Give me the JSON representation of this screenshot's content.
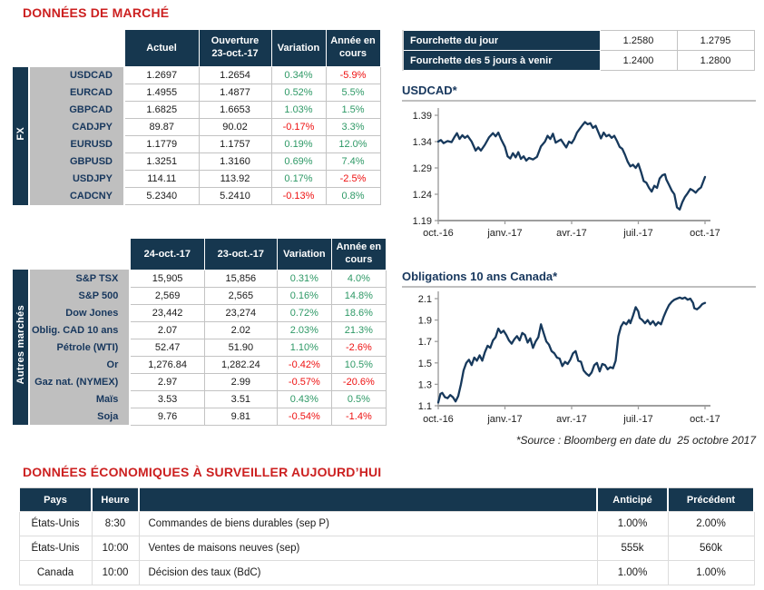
{
  "title": "DONNÉES DE MARCHÉ",
  "colors": {
    "navy_header": "#16374F",
    "title_red": "#CC2020",
    "positive_green": "#2E9966",
    "negative_red": "#EE1111",
    "label_gray": "#BFBFBF",
    "chart_line_navy": "#17395C",
    "axis_gray": "#9E9E9E"
  },
  "fx": {
    "section_label": "FX",
    "headers": [
      "Actuel",
      "Ouverture\n23-oct.-17",
      "Variation",
      "Année en\ncours"
    ],
    "rows": [
      [
        "USDCAD",
        "1.2697",
        "1.2654",
        "0.34%",
        "-5.9%"
      ],
      [
        "EURCAD",
        "1.4955",
        "1.4877",
        "0.52%",
        "5.5%"
      ],
      [
        "GBPCAD",
        "1.6825",
        "1.6653",
        "1.03%",
        "1.5%"
      ],
      [
        "CADJPY",
        "89.87",
        "90.02",
        "-0.17%",
        "3.3%"
      ],
      [
        "EURUSD",
        "1.1779",
        "1.1757",
        "0.19%",
        "12.0%"
      ],
      [
        "GBPUSD",
        "1.3251",
        "1.3160",
        "0.69%",
        "7.4%"
      ],
      [
        "USDJPY",
        "114.11",
        "113.92",
        "0.17%",
        "-2.5%"
      ],
      [
        "CADCNY",
        "5.2340",
        "5.2410",
        "-0.13%",
        "0.8%"
      ]
    ]
  },
  "ranges": {
    "rows": [
      {
        "label": "Fourchette du jour",
        "low": "1.2580",
        "high": "1.2795"
      },
      {
        "label": "Fourchette des 5 jours à venir",
        "low": "1.2400",
        "high": "1.2800"
      }
    ]
  },
  "markets": {
    "section_label": "Autres marchés",
    "headers": [
      "24-oct.-17",
      "23-oct.-17",
      "Variation",
      "Année en\ncours"
    ],
    "rows": [
      [
        "S&P TSX",
        "15,905",
        "15,856",
        "0.31%",
        "4.0%"
      ],
      [
        "S&P 500",
        "2,569",
        "2,565",
        "0.16%",
        "14.8%"
      ],
      [
        "Dow Jones",
        "23,442",
        "23,274",
        "0.72%",
        "18.6%"
      ],
      [
        "Oblig. CAD 10 ans",
        "2.07",
        "2.02",
        "2.03%",
        "21.3%"
      ],
      [
        "Pétrole (WTI)",
        "52.47",
        "51.90",
        "1.10%",
        "-2.6%"
      ],
      [
        "Or",
        "1,276.84",
        "1,282.24",
        "-0.42%",
        "10.5%"
      ],
      [
        "Gaz nat. (NYMEX)",
        "2.97",
        "2.99",
        "-0.57%",
        "-20.6%"
      ],
      [
        "Maïs",
        "3.53",
        "3.51",
        "0.43%",
        "0.5%"
      ],
      [
        "Soja",
        "9.76",
        "9.81",
        "-0.54%",
        "-1.4%"
      ]
    ]
  },
  "source_note": "*Source : Bloomberg en date du  25 octobre 2017",
  "econ": {
    "title": "DONNÉES ÉCONOMIQUES À SURVEILLER AUJOURD’HUI",
    "headers": [
      "Pays",
      "Heure",
      "",
      "Anticipé",
      "Précédent"
    ],
    "rows": [
      [
        "États-Unis",
        "8:30",
        "Commandes de biens durables (sep P)",
        "1.00%",
        "2.00%"
      ],
      [
        "États-Unis",
        "10:00",
        "Ventes de maisons neuves (sep)",
        "555k",
        "560k"
      ],
      [
        "Canada",
        "10:00",
        "Décision des taux (BdC)",
        "1.00%",
        "1.00%"
      ]
    ]
  },
  "chart_data": [
    {
      "type": "line",
      "title": "USDCAD*",
      "x_ticks": [
        "oct.-16",
        "janv.-17",
        "avr.-17",
        "juil.-17",
        "oct.-17"
      ],
      "y_tick_labels": [
        "1.39",
        "1.34",
        "1.29",
        "1.24",
        "1.19"
      ],
      "ylim": [
        1.19,
        1.39
      ],
      "grid": false,
      "legend": "none",
      "points": [
        [
          0,
          1.34
        ],
        [
          0.01,
          1.343
        ],
        [
          0.02,
          1.337
        ],
        [
          0.035,
          1.341
        ],
        [
          0.05,
          1.339
        ],
        [
          0.06,
          1.348
        ],
        [
          0.07,
          1.356
        ],
        [
          0.08,
          1.345
        ],
        [
          0.09,
          1.352
        ],
        [
          0.1,
          1.347
        ],
        [
          0.11,
          1.351
        ],
        [
          0.125,
          1.34
        ],
        [
          0.14,
          1.323
        ],
        [
          0.15,
          1.329
        ],
        [
          0.16,
          1.323
        ],
        [
          0.175,
          1.334
        ],
        [
          0.19,
          1.348
        ],
        [
          0.205,
          1.356
        ],
        [
          0.215,
          1.35
        ],
        [
          0.225,
          1.357
        ],
        [
          0.235,
          1.345
        ],
        [
          0.25,
          1.33
        ],
        [
          0.26,
          1.312
        ],
        [
          0.27,
          1.308
        ],
        [
          0.28,
          1.318
        ],
        [
          0.29,
          1.31
        ],
        [
          0.3,
          1.32
        ],
        [
          0.31,
          1.307
        ],
        [
          0.32,
          1.312
        ],
        [
          0.33,
          1.304
        ],
        [
          0.34,
          1.309
        ],
        [
          0.355,
          1.306
        ],
        [
          0.37,
          1.311
        ],
        [
          0.385,
          1.331
        ],
        [
          0.4,
          1.34
        ],
        [
          0.41,
          1.351
        ],
        [
          0.42,
          1.345
        ],
        [
          0.43,
          1.355
        ],
        [
          0.44,
          1.338
        ],
        [
          0.45,
          1.341
        ],
        [
          0.46,
          1.344
        ],
        [
          0.47,
          1.336
        ],
        [
          0.48,
          1.329
        ],
        [
          0.49,
          1.34
        ],
        [
          0.5,
          1.337
        ],
        [
          0.51,
          1.345
        ],
        [
          0.52,
          1.357
        ],
        [
          0.53,
          1.364
        ],
        [
          0.54,
          1.371
        ],
        [
          0.55,
          1.377
        ],
        [
          0.56,
          1.373
        ],
        [
          0.57,
          1.375
        ],
        [
          0.58,
          1.366
        ],
        [
          0.59,
          1.37
        ],
        [
          0.6,
          1.358
        ],
        [
          0.61,
          1.346
        ],
        [
          0.62,
          1.357
        ],
        [
          0.63,
          1.35
        ],
        [
          0.64,
          1.353
        ],
        [
          0.65,
          1.347
        ],
        [
          0.66,
          1.351
        ],
        [
          0.67,
          1.341
        ],
        [
          0.68,
          1.33
        ],
        [
          0.69,
          1.326
        ],
        [
          0.7,
          1.315
        ],
        [
          0.71,
          1.302
        ],
        [
          0.72,
          1.293
        ],
        [
          0.73,
          1.296
        ],
        [
          0.74,
          1.29
        ],
        [
          0.75,
          1.298
        ],
        [
          0.76,
          1.283
        ],
        [
          0.77,
          1.265
        ],
        [
          0.78,
          1.262
        ],
        [
          0.79,
          1.252
        ],
        [
          0.8,
          1.245
        ],
        [
          0.81,
          1.256
        ],
        [
          0.82,
          1.252
        ],
        [
          0.83,
          1.27
        ],
        [
          0.84,
          1.276
        ],
        [
          0.85,
          1.278
        ],
        [
          0.855,
          1.268
        ],
        [
          0.865,
          1.258
        ],
        [
          0.875,
          1.247
        ],
        [
          0.885,
          1.24
        ],
        [
          0.895,
          1.215
        ],
        [
          0.905,
          1.211
        ],
        [
          0.915,
          1.225
        ],
        [
          0.925,
          1.235
        ],
        [
          0.935,
          1.242
        ],
        [
          0.945,
          1.25
        ],
        [
          0.955,
          1.247
        ],
        [
          0.965,
          1.243
        ],
        [
          0.975,
          1.249
        ],
        [
          0.985,
          1.253
        ],
        [
          1.0,
          1.273
        ]
      ]
    },
    {
      "type": "line",
      "title": "Obligations 10 ans Canada*",
      "x_ticks": [
        "oct.-16",
        "janv.-17",
        "avr.-17",
        "juil.-17",
        "oct.-17"
      ],
      "y_tick_labels": [
        "2.1",
        "1.9",
        "1.7",
        "1.5",
        "1.3",
        "1.1"
      ],
      "ylim": [
        1.1,
        2.1
      ],
      "grid": false,
      "legend": "none",
      "points": [
        [
          0,
          1.13
        ],
        [
          0.008,
          1.21
        ],
        [
          0.015,
          1.22
        ],
        [
          0.025,
          1.18
        ],
        [
          0.035,
          1.17
        ],
        [
          0.045,
          1.2
        ],
        [
          0.055,
          1.18
        ],
        [
          0.065,
          1.14
        ],
        [
          0.075,
          1.19
        ],
        [
          0.085,
          1.3
        ],
        [
          0.095,
          1.43
        ],
        [
          0.105,
          1.5
        ],
        [
          0.115,
          1.53
        ],
        [
          0.125,
          1.48
        ],
        [
          0.135,
          1.55
        ],
        [
          0.145,
          1.52
        ],
        [
          0.155,
          1.57
        ],
        [
          0.165,
          1.52
        ],
        [
          0.175,
          1.6
        ],
        [
          0.185,
          1.66
        ],
        [
          0.195,
          1.64
        ],
        [
          0.205,
          1.71
        ],
        [
          0.215,
          1.74
        ],
        [
          0.225,
          1.82
        ],
        [
          0.235,
          1.78
        ],
        [
          0.245,
          1.8
        ],
        [
          0.255,
          1.76
        ],
        [
          0.265,
          1.71
        ],
        [
          0.275,
          1.68
        ],
        [
          0.285,
          1.72
        ],
        [
          0.295,
          1.75
        ],
        [
          0.305,
          1.71
        ],
        [
          0.315,
          1.78
        ],
        [
          0.325,
          1.76
        ],
        [
          0.335,
          1.69
        ],
        [
          0.345,
          1.73
        ],
        [
          0.355,
          1.64
        ],
        [
          0.365,
          1.7
        ],
        [
          0.375,
          1.74
        ],
        [
          0.385,
          1.86
        ],
        [
          0.395,
          1.78
        ],
        [
          0.405,
          1.7
        ],
        [
          0.415,
          1.67
        ],
        [
          0.425,
          1.61
        ],
        [
          0.435,
          1.59
        ],
        [
          0.445,
          1.55
        ],
        [
          0.455,
          1.54
        ],
        [
          0.465,
          1.47
        ],
        [
          0.475,
          1.51
        ],
        [
          0.485,
          1.49
        ],
        [
          0.495,
          1.53
        ],
        [
          0.505,
          1.59
        ],
        [
          0.515,
          1.61
        ],
        [
          0.525,
          1.52
        ],
        [
          0.535,
          1.51
        ],
        [
          0.545,
          1.43
        ],
        [
          0.555,
          1.4
        ],
        [
          0.565,
          1.38
        ],
        [
          0.575,
          1.41
        ],
        [
          0.585,
          1.48
        ],
        [
          0.595,
          1.5
        ],
        [
          0.605,
          1.42
        ],
        [
          0.615,
          1.49
        ],
        [
          0.625,
          1.48
        ],
        [
          0.635,
          1.44
        ],
        [
          0.645,
          1.46
        ],
        [
          0.655,
          1.45
        ],
        [
          0.665,
          1.52
        ],
        [
          0.675,
          1.75
        ],
        [
          0.685,
          1.84
        ],
        [
          0.695,
          1.88
        ],
        [
          0.705,
          1.86
        ],
        [
          0.715,
          1.9
        ],
        [
          0.72,
          1.87
        ],
        [
          0.73,
          1.94
        ],
        [
          0.74,
          2.02
        ],
        [
          0.75,
          1.98
        ],
        [
          0.755,
          1.92
        ],
        [
          0.765,
          1.9
        ],
        [
          0.775,
          1.87
        ],
        [
          0.785,
          1.9
        ],
        [
          0.795,
          1.86
        ],
        [
          0.805,
          1.89
        ],
        [
          0.815,
          1.85
        ],
        [
          0.825,
          1.88
        ],
        [
          0.835,
          1.86
        ],
        [
          0.845,
          1.93
        ],
        [
          0.855,
          1.99
        ],
        [
          0.865,
          2.04
        ],
        [
          0.875,
          2.07
        ],
        [
          0.885,
          2.09
        ],
        [
          0.895,
          2.1
        ],
        [
          0.905,
          2.11
        ],
        [
          0.915,
          2.1
        ],
        [
          0.925,
          2.11
        ],
        [
          0.935,
          2.09
        ],
        [
          0.945,
          2.1
        ],
        [
          0.955,
          2.06
        ],
        [
          0.96,
          2.01
        ],
        [
          0.97,
          2.0
        ],
        [
          0.98,
          2.02
        ],
        [
          0.99,
          2.05
        ],
        [
          1.0,
          2.06
        ]
      ]
    }
  ]
}
